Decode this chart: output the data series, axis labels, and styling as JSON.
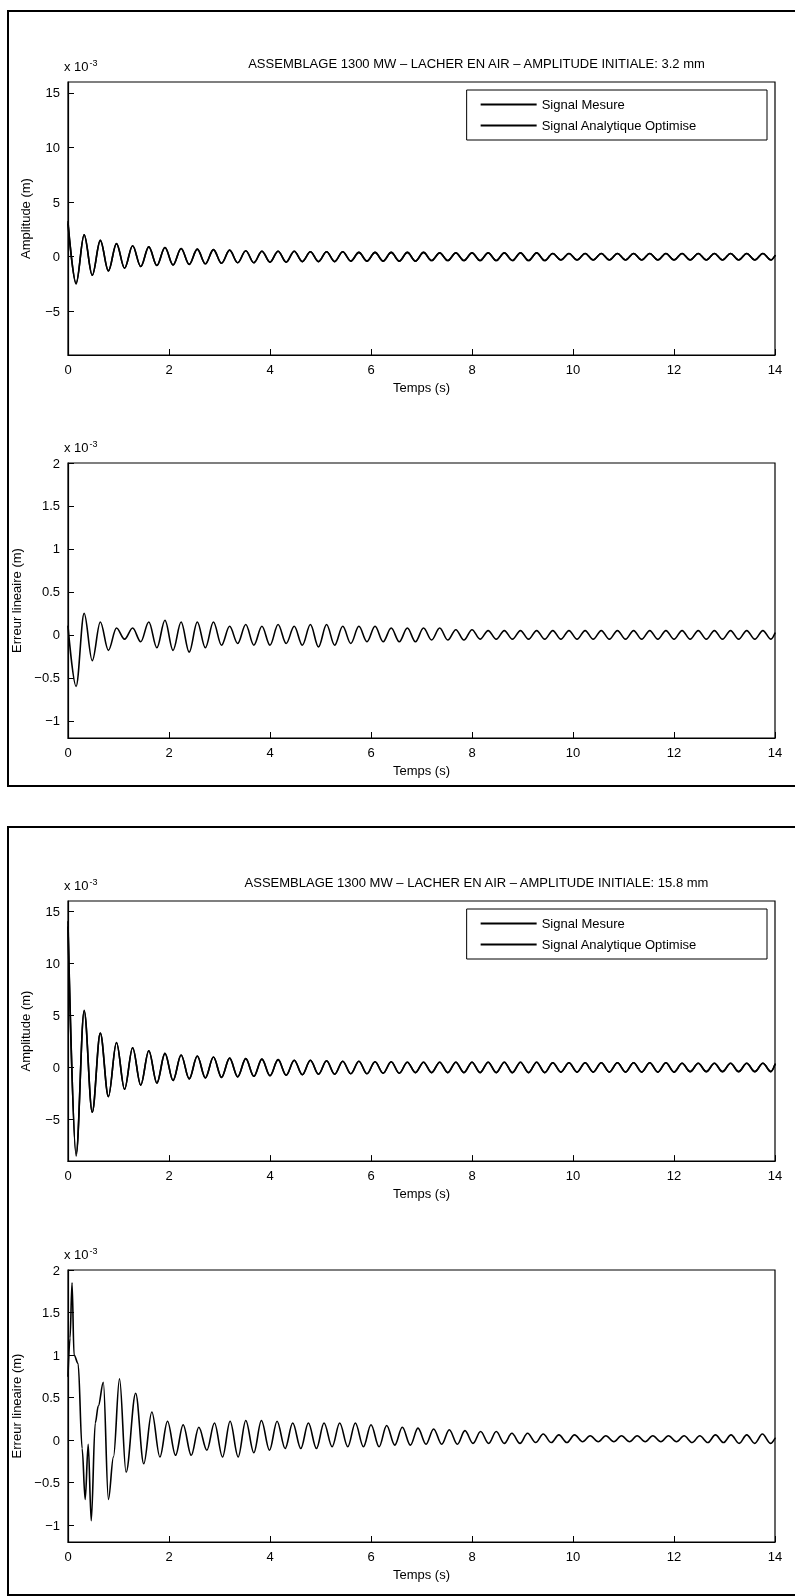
{
  "chart_data": [
    {
      "type": "line",
      "title": "ASSEMBLAGE 1300 MW – LACHER EN AIR – AMPLITUDE INITIALE: 3.2 mm",
      "xlabel": "Temps (s)",
      "ylabel": "Amplitude (m)",
      "annotations": [
        "x 10$^{-3}$"
      ],
      "legend": "top right",
      "xlim": [
        0,
        14
      ],
      "ylim": [
        -9,
        16
      ],
      "xticks": [
        0,
        2,
        4,
        6,
        8,
        10,
        12,
        14
      ],
      "yticks": [
        -5,
        0,
        5,
        10,
        15
      ],
      "x": [
        0,
        0.16,
        0.32,
        0.48,
        0.64,
        0.8,
        0.96,
        1.12,
        1.28,
        1.44,
        1.6,
        1.76,
        1.92,
        2.08,
        2.24,
        2.4,
        2.56,
        2.72,
        2.88,
        3.04,
        3.2,
        3.36,
        3.52,
        3.68,
        3.84,
        4,
        4.16,
        4.32,
        4.48,
        4.64,
        4.8,
        4.96,
        5.12,
        5.28,
        5.44,
        5.6,
        5.76,
        5.92,
        6.08,
        6.24,
        6.4,
        6.56,
        6.72,
        6.88,
        7.04,
        7.2,
        7.36,
        7.52,
        7.68,
        7.84,
        8,
        8.16,
        8.32,
        8.48,
        8.64,
        8.8,
        8.96,
        9.12,
        9.28,
        9.44,
        9.6,
        9.76,
        9.92,
        10.08,
        10.24,
        10.4,
        10.56,
        10.72,
        10.88,
        11.04,
        11.2,
        11.36,
        11.52,
        11.68,
        11.84,
        12,
        12.16,
        12.32,
        12.48,
        12.64,
        12.8,
        12.96,
        13.12,
        13.28,
        13.44,
        13.6,
        13.76,
        13.92,
        14
      ],
      "series": [
        {
          "name": "Signal Mesure",
          "color": "#000000",
          "values": [
            3.2,
            -2.5,
            2.0,
            -1.7,
            1.5,
            -1.3,
            1.2,
            -1.05,
            1.0,
            -0.9,
            0.9,
            -0.8,
            0.85,
            -0.75,
            0.75,
            -0.7,
            0.7,
            -0.65,
            0.65,
            -0.6,
            0.6,
            -0.55,
            0.55,
            -0.55,
            0.5,
            -0.5,
            0.5,
            -0.5,
            0.5,
            -0.45,
            0.45,
            -0.45,
            0.45,
            -0.45,
            0.45,
            -0.4,
            0.4,
            -0.4,
            0.4,
            -0.4,
            0.4,
            -0.4,
            0.4,
            -0.4,
            0.4,
            -0.35,
            0.35,
            -0.35,
            0.35,
            -0.35,
            0.35,
            -0.35,
            0.35,
            -0.35,
            0.35,
            -0.35,
            0.35,
            -0.35,
            0.35,
            -0.35,
            0.3,
            -0.3,
            0.3,
            -0.3,
            0.3,
            -0.3,
            0.3,
            -0.3,
            0.3,
            -0.3,
            0.3,
            -0.3,
            0.3,
            -0.3,
            0.3,
            -0.3,
            0.3,
            -0.3,
            0.3,
            -0.3,
            0.3,
            -0.3,
            0.3,
            -0.3,
            0.3,
            -0.3,
            0.3,
            -0.3,
            0.1
          ]
        },
        {
          "name": "Signal Analytique Optimise",
          "color": "#000000",
          "values": [
            3.0,
            -2.4,
            2.0,
            -1.7,
            1.5,
            -1.3,
            1.2,
            -1.05,
            1.0,
            -0.9,
            0.9,
            -0.8,
            0.85,
            -0.75,
            0.75,
            -0.7,
            0.7,
            -0.65,
            0.65,
            -0.6,
            0.6,
            -0.55,
            0.55,
            -0.55,
            0.5,
            -0.5,
            0.5,
            -0.5,
            0.5,
            -0.45,
            0.45,
            -0.45,
            0.45,
            -0.45,
            0.45,
            -0.4,
            0.4,
            -0.4,
            0.4,
            -0.4,
            0.4,
            -0.4,
            0.4,
            -0.4,
            0.4,
            -0.35,
            0.35,
            -0.35,
            0.35,
            -0.35,
            0.35,
            -0.35,
            0.35,
            -0.35,
            0.35,
            -0.35,
            0.35,
            -0.35,
            0.35,
            -0.35,
            0.3,
            -0.3,
            0.3,
            -0.3,
            0.3,
            -0.3,
            0.3,
            -0.3,
            0.3,
            -0.3,
            0.3,
            -0.3,
            0.3,
            -0.3,
            0.3,
            -0.3,
            0.3,
            -0.3,
            0.3,
            -0.3,
            0.3,
            -0.3,
            0.3,
            -0.3,
            0.3,
            -0.3,
            0.3,
            -0.3,
            0.1
          ]
        }
      ]
    },
    {
      "type": "line",
      "xlabel": "Temps (s)",
      "ylabel": "Erreur lineaire (m)",
      "annotations": [
        "x 10$^{-3}$"
      ],
      "xlim": [
        0,
        14
      ],
      "ylim": [
        -1.2,
        2
      ],
      "xticks": [
        0,
        2,
        4,
        6,
        8,
        10,
        12,
        14
      ],
      "yticks": [
        -1,
        -0.5,
        0,
        0.5,
        1,
        1.5,
        2
      ],
      "x": [
        0,
        0.16,
        0.32,
        0.48,
        0.64,
        0.8,
        0.96,
        1.12,
        1.28,
        1.44,
        1.6,
        1.76,
        1.92,
        2.08,
        2.24,
        2.4,
        2.56,
        2.72,
        2.88,
        3.04,
        3.2,
        3.36,
        3.52,
        3.68,
        3.84,
        4,
        4.16,
        4.32,
        4.48,
        4.64,
        4.8,
        4.96,
        5.12,
        5.28,
        5.44,
        5.6,
        5.76,
        5.92,
        6.08,
        6.24,
        6.4,
        6.56,
        6.72,
        6.88,
        7.04,
        7.2,
        7.36,
        7.52,
        7.68,
        7.84,
        8,
        8.16,
        8.32,
        8.48,
        8.64,
        8.8,
        8.96,
        9.12,
        9.28,
        9.44,
        9.6,
        9.76,
        9.92,
        10.08,
        10.24,
        10.4,
        10.56,
        10.72,
        10.88,
        11.04,
        11.2,
        11.36,
        11.52,
        11.68,
        11.84,
        12,
        12.16,
        12.32,
        12.48,
        12.64,
        12.8,
        12.96,
        13.12,
        13.28,
        13.44,
        13.6,
        13.76,
        13.92,
        14
      ],
      "series": [
        {
          "color": "#000000",
          "values": [
            0.1,
            -0.6,
            0.25,
            -0.3,
            0.15,
            -0.18,
            0.08,
            -0.05,
            0.08,
            -0.08,
            0.15,
            -0.15,
            0.17,
            -0.18,
            0.15,
            -0.2,
            0.15,
            -0.15,
            0.15,
            -0.12,
            0.1,
            -0.1,
            0.12,
            -0.12,
            0.1,
            -0.12,
            0.12,
            -0.1,
            0.1,
            -0.12,
            0.12,
            -0.14,
            0.12,
            -0.12,
            0.1,
            -0.1,
            0.1,
            -0.08,
            0.1,
            -0.08,
            0.08,
            -0.08,
            0.08,
            -0.08,
            0.08,
            -0.06,
            0.08,
            -0.06,
            0.06,
            -0.06,
            0.06,
            -0.05,
            0.05,
            -0.05,
            0.05,
            -0.05,
            0.05,
            -0.05,
            0.05,
            -0.05,
            0.05,
            -0.05,
            0.05,
            -0.05,
            0.05,
            -0.05,
            0.05,
            -0.05,
            0.05,
            -0.05,
            0.05,
            -0.05,
            0.05,
            -0.05,
            0.05,
            -0.05,
            0.05,
            -0.05,
            0.05,
            -0.05,
            0.05,
            -0.05,
            0.05,
            -0.05,
            0.05,
            -0.05,
            0.05,
            -0.05,
            0.02
          ]
        }
      ]
    },
    {
      "type": "line",
      "title": "ASSEMBLAGE 1300 MW – LACHER EN AIR – AMPLITUDE INITIALE: 15.8 mm",
      "xlabel": "Temps (s)",
      "ylabel": "Amplitude (m)",
      "annotations": [
        "x 10$^{-3}$"
      ],
      "legend": "top right",
      "xlim": [
        0,
        14
      ],
      "ylim": [
        -9,
        16
      ],
      "xticks": [
        0,
        2,
        4,
        6,
        8,
        10,
        12,
        14
      ],
      "yticks": [
        -5,
        0,
        5,
        10,
        15
      ],
      "x": [
        0,
        0.16,
        0.32,
        0.48,
        0.64,
        0.8,
        0.96,
        1.12,
        1.28,
        1.44,
        1.6,
        1.76,
        1.92,
        2.08,
        2.24,
        2.4,
        2.56,
        2.72,
        2.88,
        3.04,
        3.2,
        3.36,
        3.52,
        3.68,
        3.84,
        4,
        4.16,
        4.32,
        4.48,
        4.64,
        4.8,
        4.96,
        5.12,
        5.28,
        5.44,
        5.6,
        5.76,
        5.92,
        6.08,
        6.24,
        6.4,
        6.56,
        6.72,
        6.88,
        7.04,
        7.2,
        7.36,
        7.52,
        7.68,
        7.84,
        8,
        8.16,
        8.32,
        8.48,
        8.64,
        8.8,
        8.96,
        9.12,
        9.28,
        9.44,
        9.6,
        9.76,
        9.92,
        10.08,
        10.24,
        10.4,
        10.56,
        10.72,
        10.88,
        11.04,
        11.2,
        11.36,
        11.52,
        11.68,
        11.84,
        12,
        12.16,
        12.32,
        12.48,
        12.64,
        12.8,
        12.96,
        13.12,
        13.28,
        13.44,
        13.6,
        13.76,
        13.92,
        14
      ],
      "series": [
        {
          "name": "Signal Mesure",
          "color": "#000000",
          "values": [
            14,
            -8.5,
            5.5,
            -4.3,
            3.3,
            -2.8,
            2.4,
            -2.1,
            1.9,
            -1.7,
            1.6,
            -1.5,
            1.35,
            -1.25,
            1.2,
            -1.1,
            1.1,
            -1.0,
            1.0,
            -0.95,
            0.9,
            -0.9,
            0.85,
            -0.85,
            0.8,
            -0.8,
            0.75,
            -0.75,
            0.7,
            -0.7,
            0.7,
            -0.65,
            0.65,
            -0.65,
            0.6,
            -0.6,
            0.6,
            -0.6,
            0.55,
            -0.55,
            0.55,
            -0.55,
            0.5,
            -0.5,
            0.5,
            -0.5,
            0.5,
            -0.5,
            0.5,
            -0.5,
            0.5,
            -0.5,
            0.5,
            -0.5,
            0.5,
            -0.5,
            0.5,
            -0.5,
            0.5,
            -0.5,
            0.45,
            -0.45,
            0.45,
            -0.45,
            0.45,
            -0.45,
            0.45,
            -0.45,
            0.45,
            -0.45,
            0.45,
            -0.45,
            0.45,
            -0.45,
            0.45,
            -0.45,
            0.4,
            -0.4,
            0.4,
            -0.4,
            0.4,
            -0.4,
            0.4,
            -0.4,
            0.4,
            -0.4,
            0.4,
            -0.4,
            0.3
          ]
        },
        {
          "name": "Signal Analytique Optimise",
          "color": "#000000",
          "values": [
            13.5,
            -8.3,
            5.4,
            -4.3,
            3.3,
            -2.8,
            2.4,
            -2.1,
            1.9,
            -1.7,
            1.6,
            -1.5,
            1.35,
            -1.25,
            1.2,
            -1.1,
            1.1,
            -1.0,
            1.0,
            -0.95,
            0.9,
            -0.9,
            0.85,
            -0.85,
            0.8,
            -0.8,
            0.75,
            -0.75,
            0.7,
            -0.7,
            0.7,
            -0.65,
            0.65,
            -0.65,
            0.6,
            -0.6,
            0.6,
            -0.6,
            0.55,
            -0.55,
            0.55,
            -0.55,
            0.5,
            -0.5,
            0.5,
            -0.5,
            0.5,
            -0.5,
            0.5,
            -0.5,
            0.5,
            -0.5,
            0.5,
            -0.5,
            0.5,
            -0.5,
            0.5,
            -0.5,
            0.5,
            -0.5,
            0.45,
            -0.45,
            0.45,
            -0.45,
            0.45,
            -0.45,
            0.45,
            -0.45,
            0.45,
            -0.45,
            0.45,
            -0.45,
            0.45,
            -0.45,
            0.45,
            -0.45,
            0.4,
            -0.4,
            0.4,
            -0.4,
            0.4,
            -0.4,
            0.4,
            -0.4,
            0.4,
            -0.4,
            0.4,
            -0.4,
            0.3
          ]
        }
      ]
    },
    {
      "type": "line",
      "xlabel": "Temps (s)",
      "ylabel": "Erreur lineaire (m)",
      "annotations": [
        "x 10$^{-3}$"
      ],
      "xlim": [
        0,
        14
      ],
      "ylim": [
        -1.2,
        2
      ],
      "xticks": [
        0,
        2,
        4,
        6,
        8,
        10,
        12,
        14
      ],
      "yticks": [
        -1,
        -0.5,
        0,
        0.5,
        1,
        1.5,
        2
      ],
      "x": [
        0,
        0.04,
        0.08,
        0.12,
        0.2,
        0.28,
        0.34,
        0.4,
        0.46,
        0.54,
        0.6,
        0.7,
        0.8,
        0.9,
        1.02,
        1.15,
        1.34,
        1.5,
        1.66,
        1.82,
        1.97,
        2.13,
        2.28,
        2.44,
        2.59,
        2.75,
        2.9,
        3.06,
        3.21,
        3.37,
        3.52,
        3.68,
        3.83,
        3.99,
        4.14,
        4.3,
        4.45,
        4.61,
        4.76,
        4.92,
        5.07,
        5.23,
        5.38,
        5.54,
        5.69,
        5.85,
        6.0,
        6.16,
        6.31,
        6.47,
        6.62,
        6.78,
        6.93,
        7.09,
        7.24,
        7.4,
        7.55,
        7.71,
        7.86,
        8.02,
        8.17,
        8.33,
        8.48,
        8.64,
        8.79,
        8.95,
        9.1,
        9.26,
        9.41,
        9.57,
        9.72,
        9.88,
        10.03,
        10.19,
        10.34,
        10.5,
        10.65,
        10.81,
        10.96,
        11.12,
        11.27,
        11.43,
        11.58,
        11.74,
        11.89,
        12.05,
        12.2,
        12.36,
        12.51,
        12.67,
        12.82,
        12.98,
        13.13,
        13.29,
        13.44,
        13.6,
        13.75,
        13.91,
        14
      ],
      "series": [
        {
          "color": "#000000",
          "values": [
            0.75,
            1.2,
            1.85,
            1.0,
            0.9,
            -0.1,
            -0.7,
            -0.05,
            -0.95,
            0.2,
            0.4,
            0.68,
            -0.7,
            -0.2,
            0.72,
            -0.38,
            0.55,
            -0.28,
            0.33,
            -0.2,
            0.22,
            -0.18,
            0.18,
            -0.18,
            0.15,
            -0.12,
            0.2,
            -0.2,
            0.22,
            -0.2,
            0.23,
            -0.15,
            0.23,
            -0.12,
            0.22,
            -0.1,
            0.2,
            -0.1,
            0.2,
            -0.1,
            0.2,
            -0.08,
            0.2,
            -0.08,
            0.2,
            -0.08,
            0.18,
            -0.08,
            0.17,
            -0.06,
            0.15,
            -0.06,
            0.14,
            -0.05,
            0.13,
            -0.05,
            0.12,
            -0.05,
            0.11,
            -0.04,
            0.1,
            -0.04,
            0.1,
            -0.04,
            0.08,
            -0.04,
            0.08,
            -0.03,
            0.07,
            -0.03,
            0.06,
            -0.03,
            0.06,
            -0.02,
            0.05,
            -0.02,
            0.05,
            -0.02,
            0.05,
            -0.02,
            0.05,
            -0.02,
            0.05,
            -0.02,
            0.05,
            -0.02,
            0.05,
            -0.03,
            0.05,
            -0.03,
            0.06,
            -0.03,
            0.06,
            -0.04,
            0.06,
            -0.04,
            0.07,
            -0.04,
            0.02
          ]
        }
      ]
    }
  ]
}
